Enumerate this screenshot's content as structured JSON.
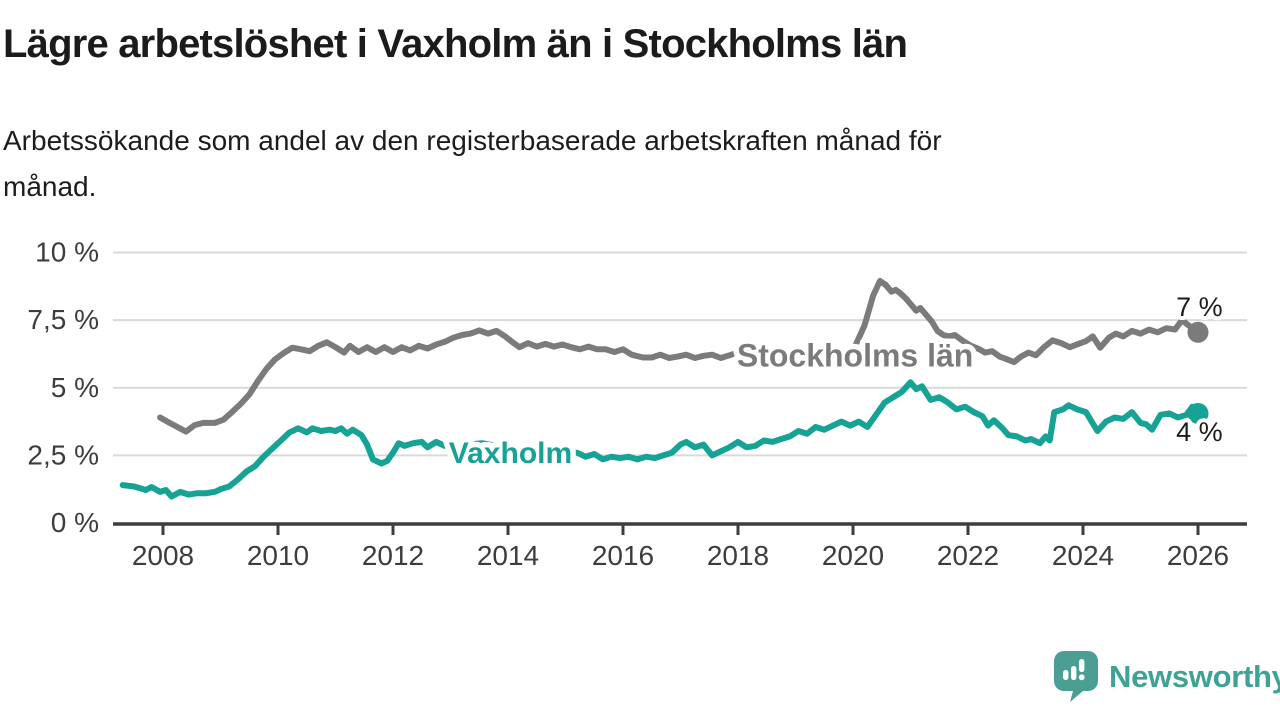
{
  "chart_data": {
    "type": "line",
    "title": "Lägre arbetslöshet i Vaxholm än i Stockholms län",
    "subtitle_lines": [
      "Arbetssökande som andel av den registerbaserade arbetskraften månad för",
      "månad."
    ],
    "x_axis": {
      "ticks": [
        2008,
        2010,
        2012,
        2014,
        2016,
        2018,
        2020,
        2022,
        2024,
        2026
      ],
      "range": [
        2007.3,
        2026.9
      ],
      "grid": false
    },
    "y_axis": {
      "unit": "%",
      "ticks": [
        {
          "value": 0,
          "label": "0 %"
        },
        {
          "value": 2.5,
          "label": "2,5 %"
        },
        {
          "value": 5,
          "label": "5 %"
        },
        {
          "value": 7.5,
          "label": "7,5 %"
        },
        {
          "value": 10,
          "label": "10 %"
        }
      ],
      "range": [
        0,
        10
      ],
      "grid": true
    },
    "colors": {
      "grid": "#d9d9d9",
      "axis": "#3d3d3d",
      "tick_label": "#3d3d3d",
      "end_label_text": "#1c1c1c"
    },
    "series": [
      {
        "name": "Stockholms län",
        "color": "#7b7b7b",
        "line_label": {
          "text": "Stockholms län",
          "year": 2017.98,
          "pct": 5.78,
          "font_size": 32
        },
        "end_dot": {
          "year": 2026.0,
          "pct": 7.05
        },
        "end_label": {
          "text": "7 %",
          "year": 2025.62,
          "pct": 7.65
        },
        "points": [
          [
            2007.95,
            3.9
          ],
          [
            2008.1,
            3.72
          ],
          [
            2008.25,
            3.55
          ],
          [
            2008.4,
            3.38
          ],
          [
            2008.55,
            3.62
          ],
          [
            2008.7,
            3.7
          ],
          [
            2008.9,
            3.7
          ],
          [
            2009.05,
            3.82
          ],
          [
            2009.2,
            4.1
          ],
          [
            2009.35,
            4.4
          ],
          [
            2009.5,
            4.75
          ],
          [
            2009.65,
            5.25
          ],
          [
            2009.8,
            5.7
          ],
          [
            2009.95,
            6.05
          ],
          [
            2010.1,
            6.28
          ],
          [
            2010.25,
            6.48
          ],
          [
            2010.4,
            6.42
          ],
          [
            2010.55,
            6.35
          ],
          [
            2010.7,
            6.55
          ],
          [
            2010.85,
            6.68
          ],
          [
            2011.0,
            6.5
          ],
          [
            2011.15,
            6.3
          ],
          [
            2011.25,
            6.55
          ],
          [
            2011.4,
            6.32
          ],
          [
            2011.55,
            6.5
          ],
          [
            2011.7,
            6.32
          ],
          [
            2011.85,
            6.5
          ],
          [
            2012.0,
            6.32
          ],
          [
            2012.15,
            6.5
          ],
          [
            2012.3,
            6.38
          ],
          [
            2012.45,
            6.55
          ],
          [
            2012.6,
            6.45
          ],
          [
            2012.75,
            6.6
          ],
          [
            2012.9,
            6.7
          ],
          [
            2013.05,
            6.85
          ],
          [
            2013.2,
            6.95
          ],
          [
            2013.35,
            7.0
          ],
          [
            2013.5,
            7.12
          ],
          [
            2013.65,
            7.0
          ],
          [
            2013.8,
            7.1
          ],
          [
            2013.95,
            6.9
          ],
          [
            2014.1,
            6.65
          ],
          [
            2014.2,
            6.5
          ],
          [
            2014.35,
            6.65
          ],
          [
            2014.5,
            6.52
          ],
          [
            2014.65,
            6.62
          ],
          [
            2014.8,
            6.52
          ],
          [
            2014.95,
            6.6
          ],
          [
            2015.1,
            6.5
          ],
          [
            2015.25,
            6.42
          ],
          [
            2015.4,
            6.52
          ],
          [
            2015.55,
            6.42
          ],
          [
            2015.7,
            6.42
          ],
          [
            2015.85,
            6.32
          ],
          [
            2016.0,
            6.42
          ],
          [
            2016.15,
            6.22
          ],
          [
            2016.35,
            6.12
          ],
          [
            2016.5,
            6.12
          ],
          [
            2016.65,
            6.22
          ],
          [
            2016.8,
            6.1
          ],
          [
            2016.95,
            6.15
          ],
          [
            2017.1,
            6.22
          ],
          [
            2017.25,
            6.1
          ],
          [
            2017.4,
            6.18
          ],
          [
            2017.55,
            6.22
          ],
          [
            2017.7,
            6.1
          ],
          [
            2017.85,
            6.2
          ],
          [
            2018.0,
            6.3
          ],
          [
            2018.15,
            6.1
          ],
          [
            2018.3,
            5.95
          ],
          [
            2018.5,
            5.85
          ],
          [
            2018.7,
            5.9
          ],
          [
            2018.9,
            5.82
          ],
          [
            2019.1,
            5.9
          ],
          [
            2019.3,
            5.95
          ],
          [
            2019.5,
            6.0
          ],
          [
            2019.7,
            6.1
          ],
          [
            2019.9,
            6.25
          ],
          [
            2020.05,
            6.6
          ],
          [
            2020.2,
            7.3
          ],
          [
            2020.35,
            8.4
          ],
          [
            2020.47,
            8.95
          ],
          [
            2020.57,
            8.8
          ],
          [
            2020.67,
            8.55
          ],
          [
            2020.74,
            8.62
          ],
          [
            2020.82,
            8.5
          ],
          [
            2020.92,
            8.3
          ],
          [
            2021.0,
            8.1
          ],
          [
            2021.1,
            7.85
          ],
          [
            2021.17,
            7.95
          ],
          [
            2021.27,
            7.7
          ],
          [
            2021.37,
            7.45
          ],
          [
            2021.47,
            7.1
          ],
          [
            2021.57,
            6.95
          ],
          [
            2021.67,
            6.9
          ],
          [
            2021.77,
            6.95
          ],
          [
            2021.9,
            6.75
          ],
          [
            2022.05,
            6.55
          ],
          [
            2022.2,
            6.42
          ],
          [
            2022.3,
            6.3
          ],
          [
            2022.42,
            6.35
          ],
          [
            2022.55,
            6.15
          ],
          [
            2022.68,
            6.05
          ],
          [
            2022.8,
            5.95
          ],
          [
            2022.92,
            6.15
          ],
          [
            2023.05,
            6.3
          ],
          [
            2023.18,
            6.2
          ],
          [
            2023.32,
            6.5
          ],
          [
            2023.47,
            6.75
          ],
          [
            2023.62,
            6.65
          ],
          [
            2023.77,
            6.5
          ],
          [
            2023.92,
            6.62
          ],
          [
            2024.05,
            6.72
          ],
          [
            2024.17,
            6.9
          ],
          [
            2024.3,
            6.48
          ],
          [
            2024.45,
            6.85
          ],
          [
            2024.57,
            7.0
          ],
          [
            2024.7,
            6.9
          ],
          [
            2024.85,
            7.1
          ],
          [
            2025.0,
            7.0
          ],
          [
            2025.15,
            7.15
          ],
          [
            2025.3,
            7.05
          ],
          [
            2025.45,
            7.2
          ],
          [
            2025.6,
            7.15
          ],
          [
            2025.72,
            7.5
          ],
          [
            2025.87,
            7.25
          ],
          [
            2026.0,
            7.05
          ]
        ]
      },
      {
        "name": "Vaxholm",
        "color": "#16a294",
        "line_label": {
          "text": "Vaxholm",
          "year": 2012.97,
          "pct": 2.22,
          "font_size": 30
        },
        "end_dot": {
          "year": 2026.0,
          "pct": 4.05
        },
        "end_label": {
          "text": "4 %",
          "year": 2025.62,
          "pct": 3.03
        },
        "points": [
          [
            2007.3,
            1.4
          ],
          [
            2007.5,
            1.35
          ],
          [
            2007.7,
            1.22
          ],
          [
            2007.8,
            1.33
          ],
          [
            2007.95,
            1.15
          ],
          [
            2008.05,
            1.22
          ],
          [
            2008.15,
            0.98
          ],
          [
            2008.3,
            1.15
          ],
          [
            2008.45,
            1.05
          ],
          [
            2008.6,
            1.1
          ],
          [
            2008.75,
            1.1
          ],
          [
            2008.9,
            1.15
          ],
          [
            2009.0,
            1.25
          ],
          [
            2009.15,
            1.35
          ],
          [
            2009.3,
            1.6
          ],
          [
            2009.45,
            1.9
          ],
          [
            2009.6,
            2.1
          ],
          [
            2009.75,
            2.45
          ],
          [
            2009.9,
            2.75
          ],
          [
            2010.05,
            3.05
          ],
          [
            2010.2,
            3.35
          ],
          [
            2010.35,
            3.5
          ],
          [
            2010.5,
            3.35
          ],
          [
            2010.6,
            3.5
          ],
          [
            2010.75,
            3.4
          ],
          [
            2010.9,
            3.45
          ],
          [
            2011.0,
            3.4
          ],
          [
            2011.1,
            3.5
          ],
          [
            2011.2,
            3.3
          ],
          [
            2011.3,
            3.45
          ],
          [
            2011.45,
            3.25
          ],
          [
            2011.55,
            2.9
          ],
          [
            2011.65,
            2.35
          ],
          [
            2011.8,
            2.2
          ],
          [
            2011.9,
            2.3
          ],
          [
            2012.0,
            2.6
          ],
          [
            2012.1,
            2.95
          ],
          [
            2012.2,
            2.85
          ],
          [
            2012.35,
            2.95
          ],
          [
            2012.5,
            3.0
          ],
          [
            2012.6,
            2.8
          ],
          [
            2012.75,
            3.0
          ],
          [
            2012.9,
            2.85
          ],
          [
            2013.05,
            2.95
          ],
          [
            2013.3,
            2.9
          ],
          [
            2013.55,
            2.95
          ],
          [
            2013.8,
            2.85
          ],
          [
            2014.1,
            2.8
          ],
          [
            2014.4,
            2.7
          ],
          [
            2014.7,
            2.6
          ],
          [
            2015.0,
            2.55
          ],
          [
            2015.2,
            2.6
          ],
          [
            2015.35,
            2.45
          ],
          [
            2015.5,
            2.55
          ],
          [
            2015.65,
            2.35
          ],
          [
            2015.8,
            2.45
          ],
          [
            2015.95,
            2.4
          ],
          [
            2016.1,
            2.45
          ],
          [
            2016.25,
            2.35
          ],
          [
            2016.4,
            2.45
          ],
          [
            2016.55,
            2.4
          ],
          [
            2016.7,
            2.5
          ],
          [
            2016.85,
            2.6
          ],
          [
            2017.0,
            2.9
          ],
          [
            2017.1,
            3.0
          ],
          [
            2017.25,
            2.8
          ],
          [
            2017.4,
            2.9
          ],
          [
            2017.55,
            2.5
          ],
          [
            2017.7,
            2.65
          ],
          [
            2017.85,
            2.8
          ],
          [
            2018.0,
            3.0
          ],
          [
            2018.15,
            2.8
          ],
          [
            2018.3,
            2.85
          ],
          [
            2018.45,
            3.05
          ],
          [
            2018.6,
            3.0
          ],
          [
            2018.75,
            3.1
          ],
          [
            2018.9,
            3.2
          ],
          [
            2019.05,
            3.4
          ],
          [
            2019.2,
            3.3
          ],
          [
            2019.35,
            3.55
          ],
          [
            2019.5,
            3.45
          ],
          [
            2019.65,
            3.6
          ],
          [
            2019.8,
            3.75
          ],
          [
            2019.95,
            3.6
          ],
          [
            2020.1,
            3.75
          ],
          [
            2020.25,
            3.55
          ],
          [
            2020.4,
            4.0
          ],
          [
            2020.55,
            4.45
          ],
          [
            2020.7,
            4.65
          ],
          [
            2020.85,
            4.85
          ],
          [
            2021.0,
            5.2
          ],
          [
            2021.1,
            4.95
          ],
          [
            2021.2,
            5.05
          ],
          [
            2021.35,
            4.55
          ],
          [
            2021.5,
            4.65
          ],
          [
            2021.65,
            4.45
          ],
          [
            2021.8,
            4.2
          ],
          [
            2021.95,
            4.3
          ],
          [
            2022.1,
            4.1
          ],
          [
            2022.25,
            3.95
          ],
          [
            2022.35,
            3.6
          ],
          [
            2022.45,
            3.8
          ],
          [
            2022.6,
            3.5
          ],
          [
            2022.7,
            3.25
          ],
          [
            2022.85,
            3.2
          ],
          [
            2023.0,
            3.05
          ],
          [
            2023.1,
            3.1
          ],
          [
            2023.25,
            2.95
          ],
          [
            2023.35,
            3.2
          ],
          [
            2023.42,
            3.05
          ],
          [
            2023.5,
            4.1
          ],
          [
            2023.65,
            4.2
          ],
          [
            2023.75,
            4.35
          ],
          [
            2023.9,
            4.2
          ],
          [
            2024.05,
            4.1
          ],
          [
            2024.25,
            3.4
          ],
          [
            2024.4,
            3.75
          ],
          [
            2024.55,
            3.9
          ],
          [
            2024.7,
            3.85
          ],
          [
            2024.85,
            4.1
          ],
          [
            2025.0,
            3.7
          ],
          [
            2025.1,
            3.65
          ],
          [
            2025.2,
            3.45
          ],
          [
            2025.35,
            4.0
          ],
          [
            2025.5,
            4.05
          ],
          [
            2025.65,
            3.9
          ],
          [
            2025.8,
            4.0
          ],
          [
            2025.9,
            4.3
          ],
          [
            2026.0,
            4.05
          ]
        ]
      }
    ]
  },
  "footer": {
    "brand": "Newsworthy",
    "brand_color": "#3fa294",
    "icon_color": "#4a9e93"
  }
}
